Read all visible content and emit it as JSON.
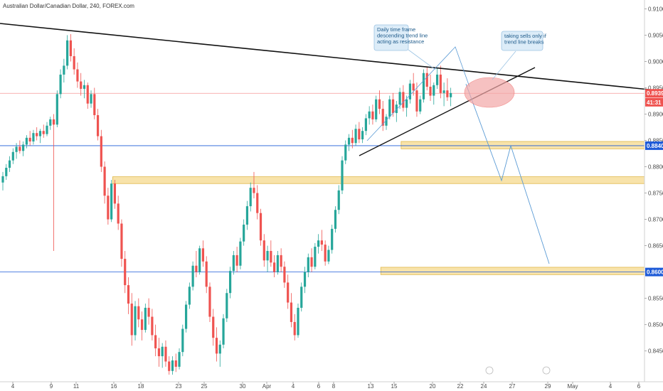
{
  "chart_data": {
    "type": "candlestick",
    "title": "Australian Dollar/Canadian Dollar, 240, FOREX.com",
    "colors": {
      "up": "#26a69a",
      "down": "#ef5350",
      "black": "#111111",
      "blue": "#1e5bd8",
      "red": "#ef5350",
      "zone": "#f5d98e",
      "zoneBorder": "#e0b84a",
      "ellipse": "#f2a6a6",
      "note_bg": "#dcecf8",
      "note_border": "#9cc4e4",
      "projection": "#5b9bd5"
    },
    "y_range": [
      0.8405,
      0.911
    ],
    "y_ticks": [
      "0.91000",
      "0.90500",
      "0.90000",
      "0.89500",
      "0.89000",
      "0.88500",
      "0.88000",
      "0.87500",
      "0.87000",
      "0.86500",
      "0.86000",
      "0.85500",
      "0.85000",
      "0.84500"
    ],
    "x_ticks": [
      "4",
      "9",
      "11",
      "16",
      "18",
      "23",
      "25",
      "30",
      "Apr",
      "4",
      "6",
      "8",
      "13",
      "15",
      "20",
      "22",
      "24",
      "27",
      "29",
      "May",
      "4",
      "6"
    ],
    "price_tags": [
      {
        "label": "0.89395",
        "value": 0.89395,
        "color": "#ef5350"
      },
      {
        "label": "41:31",
        "value": 0.89225,
        "color": "#ef5350"
      },
      {
        "label": "0.88400",
        "value": 0.884,
        "color": "#1e5bd8"
      },
      {
        "label": "0.86000",
        "value": 0.86,
        "color": "#1e5bd8"
      }
    ],
    "horizontal_lines": [
      {
        "name": "support-0.884",
        "value": 0.884,
        "color": "#1e5bd8"
      },
      {
        "name": "support-0.860",
        "value": 0.86,
        "color": "#1e5bd8"
      },
      {
        "name": "current-price",
        "value": 0.89395,
        "color": "#ef5350"
      }
    ],
    "zones": [
      {
        "name": "zone-0.884",
        "low": 0.8834,
        "high": 0.8848,
        "x_start_index": 118
      },
      {
        "name": "zone-0.877",
        "low": 0.8768,
        "high": 0.8781,
        "x_start_index": 33
      },
      {
        "name": "zone-0.860",
        "low": 0.8595,
        "high": 0.8609,
        "x_start_index": 112
      }
    ],
    "annotations": [
      {
        "name": "note-daily",
        "text": [
          "Daily time frame",
          "descending trend line",
          "acting as resistance"
        ]
      },
      {
        "name": "note-sells",
        "text": [
          "taking sells only if",
          "trend line breaks"
        ]
      }
    ],
    "candles": [
      [
        0.877,
        0.879,
        0.8755,
        0.8782
      ],
      [
        0.8782,
        0.8805,
        0.8775,
        0.8798
      ],
      [
        0.8798,
        0.882,
        0.879,
        0.8812
      ],
      [
        0.8812,
        0.8835,
        0.8805,
        0.8828
      ],
      [
        0.8828,
        0.8845,
        0.8815,
        0.8838
      ],
      [
        0.8838,
        0.885,
        0.8825,
        0.883
      ],
      [
        0.883,
        0.8848,
        0.882,
        0.8842
      ],
      [
        0.8842,
        0.886,
        0.8835,
        0.8855
      ],
      [
        0.8855,
        0.8868,
        0.884,
        0.8848
      ],
      [
        0.8848,
        0.887,
        0.8842,
        0.8864
      ],
      [
        0.8864,
        0.8875,
        0.885,
        0.8858
      ],
      [
        0.8858,
        0.8872,
        0.8845,
        0.8868
      ],
      [
        0.8868,
        0.888,
        0.8855,
        0.8862
      ],
      [
        0.8862,
        0.8885,
        0.8858,
        0.8878
      ],
      [
        0.8878,
        0.8895,
        0.887,
        0.889
      ],
      [
        0.889,
        0.89,
        0.864,
        0.888
      ],
      [
        0.888,
        0.8945,
        0.8875,
        0.8938
      ],
      [
        0.8938,
        0.8985,
        0.893,
        0.8975
      ],
      [
        0.8975,
        0.9005,
        0.896,
        0.8992
      ],
      [
        0.8992,
        0.905,
        0.8985,
        0.904
      ],
      [
        0.904,
        0.9052,
        0.9,
        0.901
      ],
      [
        0.901,
        0.9025,
        0.8975,
        0.8985
      ],
      [
        0.8985,
        0.8998,
        0.895,
        0.8962
      ],
      [
        0.8962,
        0.8978,
        0.8935,
        0.8948
      ],
      [
        0.8948,
        0.8965,
        0.893,
        0.8955
      ],
      [
        0.8955,
        0.896,
        0.891,
        0.892
      ],
      [
        0.892,
        0.8945,
        0.8912,
        0.8938
      ],
      [
        0.8938,
        0.895,
        0.889,
        0.8898
      ],
      [
        0.8898,
        0.891,
        0.885,
        0.8858
      ],
      [
        0.8858,
        0.887,
        0.879,
        0.88
      ],
      [
        0.88,
        0.881,
        0.873,
        0.8745
      ],
      [
        0.8745,
        0.876,
        0.869,
        0.87
      ],
      [
        0.87,
        0.8775,
        0.8695,
        0.8768
      ],
      [
        0.8768,
        0.8775,
        0.872,
        0.873
      ],
      [
        0.873,
        0.8745,
        0.868,
        0.8692
      ],
      [
        0.8692,
        0.87,
        0.861,
        0.8625
      ],
      [
        0.8625,
        0.864,
        0.856,
        0.8575
      ],
      [
        0.8575,
        0.859,
        0.852,
        0.854
      ],
      [
        0.854,
        0.856,
        0.846,
        0.848
      ],
      [
        0.848,
        0.8545,
        0.847,
        0.8535
      ],
      [
        0.8535,
        0.855,
        0.8495,
        0.851
      ],
      [
        0.851,
        0.8525,
        0.847,
        0.849
      ],
      [
        0.849,
        0.854,
        0.8485,
        0.8532
      ],
      [
        0.8532,
        0.855,
        0.85,
        0.8515
      ],
      [
        0.8515,
        0.853,
        0.847,
        0.848
      ],
      [
        0.848,
        0.85,
        0.844,
        0.8455
      ],
      [
        0.8455,
        0.8475,
        0.842,
        0.844
      ],
      [
        0.844,
        0.8465,
        0.8418,
        0.8458
      ],
      [
        0.8458,
        0.847,
        0.842,
        0.843
      ],
      [
        0.843,
        0.844,
        0.8405,
        0.8412
      ],
      [
        0.8412,
        0.844,
        0.8405,
        0.8432
      ],
      [
        0.8432,
        0.8445,
        0.841,
        0.842
      ],
      [
        0.842,
        0.8455,
        0.8415,
        0.8448
      ],
      [
        0.8448,
        0.85,
        0.844,
        0.8492
      ],
      [
        0.8492,
        0.8545,
        0.8485,
        0.8538
      ],
      [
        0.8538,
        0.858,
        0.853,
        0.8572
      ],
      [
        0.8572,
        0.862,
        0.8565,
        0.8612
      ],
      [
        0.8612,
        0.864,
        0.859,
        0.86
      ],
      [
        0.86,
        0.865,
        0.8595,
        0.8645
      ],
      [
        0.8645,
        0.866,
        0.861,
        0.862
      ],
      [
        0.862,
        0.863,
        0.856,
        0.8572
      ],
      [
        0.8572,
        0.858,
        0.8505,
        0.8515
      ],
      [
        0.8515,
        0.853,
        0.846,
        0.8475
      ],
      [
        0.8475,
        0.8495,
        0.843,
        0.8445
      ],
      [
        0.8445,
        0.847,
        0.842,
        0.8462
      ],
      [
        0.8462,
        0.852,
        0.8455,
        0.8512
      ],
      [
        0.8512,
        0.8568,
        0.8505,
        0.856
      ],
      [
        0.856,
        0.861,
        0.855,
        0.8602
      ],
      [
        0.8602,
        0.864,
        0.8595,
        0.8632
      ],
      [
        0.8632,
        0.8648,
        0.86,
        0.8612
      ],
      [
        0.8612,
        0.8665,
        0.8605,
        0.8658
      ],
      [
        0.8658,
        0.87,
        0.865,
        0.869
      ],
      [
        0.869,
        0.8735,
        0.868,
        0.8725
      ],
      [
        0.8725,
        0.877,
        0.8715,
        0.876
      ],
      [
        0.876,
        0.879,
        0.874,
        0.875
      ],
      [
        0.875,
        0.8765,
        0.87,
        0.8712
      ],
      [
        0.8712,
        0.872,
        0.865,
        0.866
      ],
      [
        0.866,
        0.8672,
        0.861,
        0.8622
      ],
      [
        0.8622,
        0.865,
        0.86,
        0.864
      ],
      [
        0.864,
        0.866,
        0.861,
        0.8618
      ],
      [
        0.8618,
        0.8632,
        0.859,
        0.86
      ],
      [
        0.86,
        0.864,
        0.8595,
        0.8632
      ],
      [
        0.8632,
        0.8645,
        0.86,
        0.861
      ],
      [
        0.861,
        0.862,
        0.857,
        0.858
      ],
      [
        0.858,
        0.8595,
        0.853,
        0.8542
      ],
      [
        0.8542,
        0.856,
        0.8495,
        0.8505
      ],
      [
        0.8505,
        0.852,
        0.847,
        0.848
      ],
      [
        0.848,
        0.854,
        0.8475,
        0.8532
      ],
      [
        0.8532,
        0.858,
        0.8525,
        0.8572
      ],
      [
        0.8572,
        0.861,
        0.856,
        0.86
      ],
      [
        0.86,
        0.8635,
        0.859,
        0.8628
      ],
      [
        0.8628,
        0.8645,
        0.86,
        0.861
      ],
      [
        0.861,
        0.8655,
        0.8605,
        0.8648
      ],
      [
        0.8648,
        0.8672,
        0.8635,
        0.866
      ],
      [
        0.866,
        0.868,
        0.864,
        0.8652
      ],
      [
        0.8652,
        0.866,
        0.8612,
        0.862
      ],
      [
        0.862,
        0.865,
        0.8615,
        0.8642
      ],
      [
        0.8642,
        0.869,
        0.8635,
        0.8682
      ],
      [
        0.8682,
        0.8725,
        0.8675,
        0.8718
      ],
      [
        0.8718,
        0.8765,
        0.871,
        0.8755
      ],
      [
        0.8755,
        0.882,
        0.8748,
        0.8812
      ],
      [
        0.8812,
        0.885,
        0.8805,
        0.8842
      ],
      [
        0.8842,
        0.8862,
        0.883,
        0.8855
      ],
      [
        0.8855,
        0.887,
        0.8835,
        0.8845
      ],
      [
        0.8845,
        0.888,
        0.884,
        0.8872
      ],
      [
        0.8872,
        0.8885,
        0.8845,
        0.8852
      ],
      [
        0.8852,
        0.8875,
        0.8845,
        0.8868
      ],
      [
        0.8868,
        0.89,
        0.886,
        0.8892
      ],
      [
        0.8892,
        0.8915,
        0.888,
        0.8905
      ],
      [
        0.8905,
        0.8918,
        0.888,
        0.889
      ],
      [
        0.889,
        0.8935,
        0.8885,
        0.8928
      ],
      [
        0.8928,
        0.8945,
        0.89,
        0.891
      ],
      [
        0.891,
        0.8925,
        0.8868,
        0.8878
      ],
      [
        0.8878,
        0.89,
        0.887,
        0.8895
      ],
      [
        0.8895,
        0.8935,
        0.889,
        0.8928
      ],
      [
        0.8928,
        0.894,
        0.8895,
        0.8902
      ],
      [
        0.8902,
        0.8925,
        0.8885,
        0.8918
      ],
      [
        0.8918,
        0.895,
        0.891,
        0.8942
      ],
      [
        0.8942,
        0.8955,
        0.8905,
        0.8912
      ],
      [
        0.8912,
        0.8935,
        0.8895,
        0.8928
      ],
      [
        0.8928,
        0.8965,
        0.892,
        0.8958
      ],
      [
        0.8958,
        0.8978,
        0.8935,
        0.8945
      ],
      [
        0.8945,
        0.896,
        0.8895,
        0.8905
      ],
      [
        0.8905,
        0.8935,
        0.89,
        0.8928
      ],
      [
        0.8928,
        0.8985,
        0.8922,
        0.8978
      ],
      [
        0.8978,
        0.899,
        0.8945,
        0.8952
      ],
      [
        0.8952,
        0.8975,
        0.8925,
        0.8935
      ],
      [
        0.8935,
        0.896,
        0.8918,
        0.8955
      ],
      [
        0.8955,
        0.8988,
        0.8948,
        0.8975
      ],
      [
        0.8975,
        0.8992,
        0.893,
        0.894
      ],
      [
        0.894,
        0.896,
        0.8915,
        0.8945
      ],
      [
        0.8945,
        0.8968,
        0.8925,
        0.8932
      ],
      [
        0.8932,
        0.895,
        0.8915,
        0.894
      ]
    ]
  }
}
